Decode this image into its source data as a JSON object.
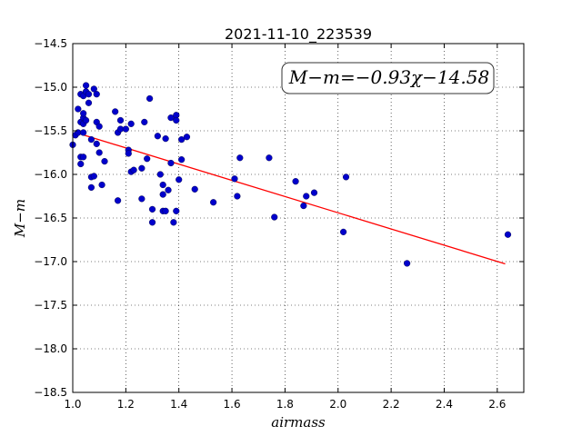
{
  "chart_data": {
    "type": "scatter",
    "title": "2021-11-10_223539",
    "xlabel": "airmass",
    "ylabel": "M−m",
    "xlim": [
      1.0,
      2.7
    ],
    "ylim": [
      -18.5,
      -14.5
    ],
    "xticks": [
      "1.0",
      "1.2",
      "1.4",
      "1.6",
      "1.8",
      "2.0",
      "2.2",
      "2.4",
      "2.6"
    ],
    "xtick_values": [
      1.0,
      1.2,
      1.4,
      1.6,
      1.8,
      2.0,
      2.2,
      2.4,
      2.6
    ],
    "yticks": [
      "−14.5",
      "−15.0",
      "−15.5",
      "−16.0",
      "−16.5",
      "−17.0",
      "−17.5",
      "−18.0",
      "−18.5"
    ],
    "ytick_values": [
      -14.5,
      -15.0,
      -15.5,
      -16.0,
      -16.5,
      -17.0,
      -17.5,
      -18.0,
      -18.5
    ],
    "grid": true,
    "annotation": "M−m=−0.93χ−14.58",
    "annotation_position": "top-right",
    "fit_line": {
      "slope": -0.93,
      "intercept": -14.58,
      "x_range": [
        1.02,
        2.63
      ],
      "color": "#ff0000"
    },
    "marker_color": "#0000cc",
    "points": {
      "x": [
        1.0,
        1.01,
        1.02,
        1.02,
        1.03,
        1.03,
        1.03,
        1.03,
        1.04,
        1.04,
        1.04,
        1.04,
        1.04,
        1.04,
        1.05,
        1.05,
        1.05,
        1.06,
        1.06,
        1.07,
        1.07,
        1.07,
        1.08,
        1.08,
        1.09,
        1.09,
        1.09,
        1.1,
        1.1,
        1.11,
        1.12,
        1.16,
        1.17,
        1.17,
        1.18,
        1.18,
        1.2,
        1.21,
        1.21,
        1.22,
        1.22,
        1.23,
        1.26,
        1.26,
        1.27,
        1.28,
        1.29,
        1.3,
        1.3,
        1.32,
        1.33,
        1.34,
        1.34,
        1.34,
        1.35,
        1.35,
        1.36,
        1.37,
        1.37,
        1.38,
        1.39,
        1.39,
        1.39,
        1.4,
        1.41,
        1.41,
        1.43,
        1.46,
        1.53,
        1.61,
        1.62,
        1.63,
        1.74,
        1.76,
        1.84,
        1.87,
        1.88,
        1.91,
        2.02,
        2.03,
        2.26,
        2.64
      ],
      "y": [
        -15.66,
        -15.55,
        -15.52,
        -15.25,
        -15.8,
        -15.88,
        -15.4,
        -15.08,
        -15.35,
        -15.3,
        -15.42,
        -15.52,
        -15.8,
        -15.1,
        -15.05,
        -14.98,
        -15.38,
        -15.18,
        -15.08,
        -15.6,
        -16.15,
        -16.03,
        -15.02,
        -16.02,
        -15.08,
        -15.4,
        -15.65,
        -15.45,
        -15.75,
        -16.12,
        -15.85,
        -15.28,
        -16.3,
        -15.52,
        -15.48,
        -15.38,
        -15.48,
        -15.72,
        -15.76,
        -15.42,
        -15.97,
        -15.95,
        -15.93,
        -16.28,
        -15.4,
        -15.82,
        -15.13,
        -16.55,
        -16.4,
        -15.56,
        -16.0,
        -16.23,
        -16.12,
        -16.42,
        -15.59,
        -16.42,
        -16.18,
        -15.35,
        -15.87,
        -16.55,
        -15.32,
        -15.38,
        -16.42,
        -16.06,
        -15.6,
        -15.83,
        -15.57,
        -16.17,
        -16.32,
        -16.05,
        -16.25,
        -15.81,
        -15.81,
        -16.49,
        -16.08,
        -16.36,
        -16.25,
        -16.21,
        -16.66,
        -16.03,
        -17.02,
        -16.69
      ]
    }
  }
}
